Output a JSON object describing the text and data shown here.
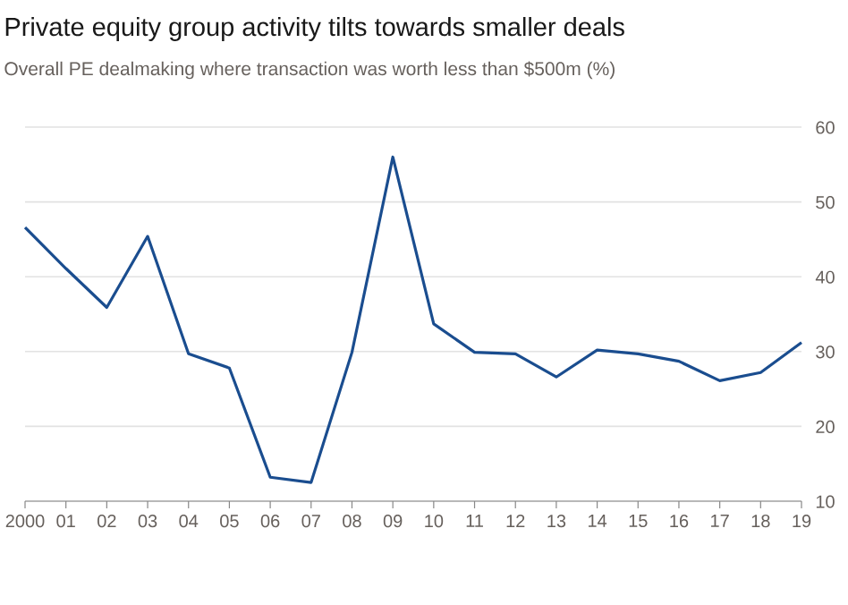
{
  "chart_data": {
    "type": "line",
    "title": "Private equity group activity tilts towards smaller deals",
    "subtitle": "Overall PE dealmaking where transaction was worth less than $500m (%)",
    "categories": [
      "2000",
      "01",
      "02",
      "03",
      "04",
      "05",
      "06",
      "07",
      "08",
      "09",
      "10",
      "11",
      "12",
      "13",
      "14",
      "15",
      "16",
      "17",
      "18",
      "19"
    ],
    "values": [
      46.6,
      41.1,
      35.9,
      45.4,
      29.7,
      27.8,
      13.2,
      12.5,
      29.9,
      56.0,
      33.7,
      29.9,
      29.7,
      26.6,
      30.2,
      29.7,
      28.7,
      26.1,
      27.2,
      31.2
    ],
    "color": "#1a4d8f",
    "ylim": [
      10,
      60
    ],
    "yticks": [
      10,
      20,
      30,
      40,
      50,
      60
    ],
    "grid": "y",
    "line_style": "solid"
  }
}
